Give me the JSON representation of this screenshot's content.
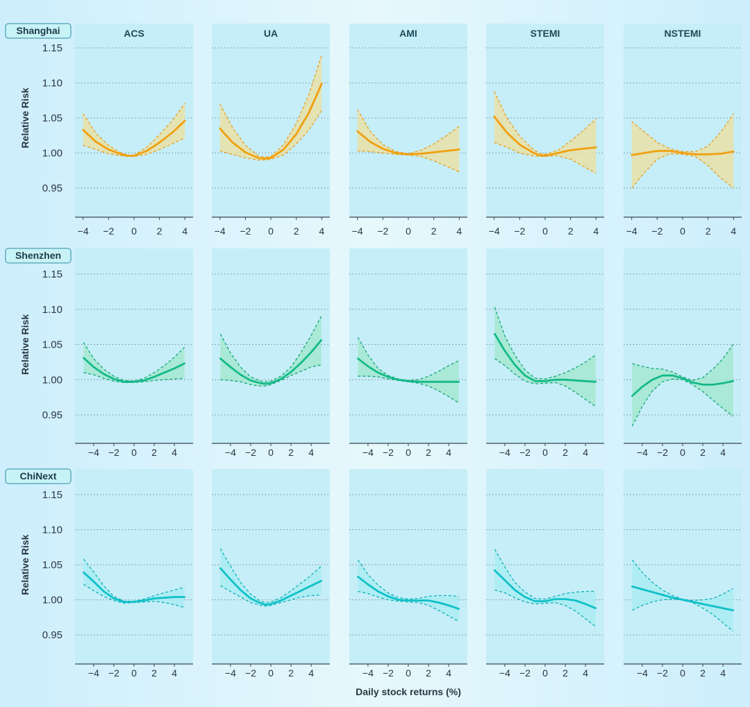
{
  "colors": {
    "Shanghai": {
      "line": "#f0a010",
      "fill": "#e8e0a8",
      "dash": "#eaa020"
    },
    "Shenzhen": {
      "line": "#14b98a",
      "fill": "#a3e7cf",
      "dash": "#14a57c"
    },
    "ChiNext": {
      "line": "#10c0c8",
      "fill": "#a8ecf2",
      "dash": "#10b0b8"
    },
    "panel": "#c6eef8",
    "grid": "#7a8a94"
  },
  "chart_data": {
    "type": "line",
    "xlabel": "Daily stock returns (%)",
    "ylabel": "Relative Risk",
    "columns": [
      "ACS",
      "UA",
      "AMI",
      "STEMI",
      "NSTEMI"
    ],
    "yticks": [
      "0.95",
      "1.00",
      "1.05",
      "1.10",
      "1.15"
    ],
    "ylim": [
      0.91,
      1.155
    ],
    "grid": true,
    "rows": [
      {
        "name": "Shanghai",
        "xlim": [
          -4.2,
          4.2
        ],
        "xticks": [
          "-4",
          "-2",
          "0",
          "2",
          "4"
        ],
        "panels": [
          {
            "x": [
              -4,
              -3,
              -2,
              -1,
              -0.5,
              0,
              1,
              2,
              3,
              4
            ],
            "y": [
              1.033,
              1.016,
              1.005,
              0.998,
              0.996,
              0.996,
              1.003,
              1.015,
              1.029,
              1.046
            ],
            "lo": [
              1.011,
              1.005,
              0.999,
              0.996,
              0.995,
              0.995,
              0.998,
              1.005,
              1.013,
              1.022
            ],
            "hi": [
              1.056,
              1.028,
              1.011,
              1.0,
              0.997,
              0.997,
              1.008,
              1.026,
              1.046,
              1.071
            ]
          },
          {
            "x": [
              -4,
              -3,
              -2,
              -1,
              -0.5,
              0,
              1,
              2,
              3,
              4
            ],
            "y": [
              1.035,
              1.015,
              1.001,
              0.993,
              0.992,
              0.993,
              1.005,
              1.027,
              1.058,
              1.099
            ],
            "lo": [
              1.003,
              0.998,
              0.993,
              0.99,
              0.99,
              0.991,
              0.997,
              1.013,
              1.033,
              1.061
            ],
            "hi": [
              1.07,
              1.036,
              1.011,
              0.996,
              0.994,
              0.995,
              1.012,
              1.042,
              1.084,
              1.14
            ]
          },
          {
            "x": [
              -4,
              -3,
              -2,
              -1,
              0,
              1,
              2,
              3,
              4
            ],
            "y": [
              1.031,
              1.016,
              1.006,
              1.0,
              0.998,
              0.999,
              1.001,
              1.003,
              1.005
            ],
            "lo": [
              1.003,
              1.002,
              1.0,
              0.998,
              0.997,
              0.995,
              0.989,
              0.981,
              0.973
            ],
            "hi": [
              1.062,
              1.031,
              1.012,
              1.002,
              0.999,
              1.004,
              1.013,
              1.025,
              1.038
            ]
          },
          {
            "x": [
              -4,
              -3,
              -2,
              -1,
              -0.5,
              0,
              1,
              2,
              3,
              4
            ],
            "y": [
              1.052,
              1.029,
              1.012,
              1.001,
              0.997,
              0.996,
              1.0,
              1.004,
              1.006,
              1.008
            ],
            "lo": [
              1.015,
              1.008,
              1.0,
              0.996,
              0.995,
              0.995,
              0.996,
              0.991,
              0.981,
              0.971
            ],
            "hi": [
              1.088,
              1.05,
              1.024,
              1.006,
              1.0,
              0.998,
              1.004,
              1.017,
              1.032,
              1.049
            ]
          },
          {
            "x": [
              -4,
              -3,
              -2,
              -1,
              0,
              1,
              2,
              3,
              4
            ],
            "y": [
              0.997,
              1.0,
              1.003,
              1.003,
              1.0,
              0.998,
              0.998,
              0.999,
              1.002
            ],
            "lo": [
              0.95,
              0.972,
              0.991,
              0.999,
              0.998,
              0.995,
              0.982,
              0.964,
              0.95
            ],
            "hi": [
              1.045,
              1.03,
              1.015,
              1.006,
              1.002,
              1.002,
              1.01,
              1.03,
              1.056
            ]
          }
        ]
      },
      {
        "name": "Shenzhen",
        "xlim": [
          -5.3,
          5.3
        ],
        "xticks": [
          "-4",
          "-2",
          "0",
          "2",
          "4"
        ],
        "panels": [
          {
            "x": [
              -5,
              -4,
              -3,
              -2,
              -1,
              0,
              1,
              2,
              3,
              4,
              5
            ],
            "y": [
              1.031,
              1.018,
              1.008,
              1.001,
              0.997,
              0.997,
              0.999,
              1.004,
              1.01,
              1.016,
              1.023
            ],
            "lo": [
              1.01,
              1.007,
              1.002,
              0.998,
              0.996,
              0.996,
              0.997,
              0.999,
              1.0,
              1.001,
              1.002
            ],
            "hi": [
              1.053,
              1.03,
              1.015,
              1.005,
              0.999,
              0.998,
              1.002,
              1.01,
              1.02,
              1.032,
              1.046
            ]
          },
          {
            "x": [
              -5,
              -4,
              -3,
              -2,
              -1,
              -0.5,
              0,
              1,
              2,
              3,
              4,
              5
            ],
            "y": [
              1.03,
              1.018,
              1.007,
              0.999,
              0.995,
              0.994,
              0.995,
              1.001,
              1.011,
              1.024,
              1.039,
              1.056
            ],
            "lo": [
              1.0,
              0.999,
              0.997,
              0.993,
              0.991,
              0.991,
              0.993,
              0.999,
              1.006,
              1.012,
              1.018,
              1.021
            ],
            "hi": [
              1.065,
              1.038,
              1.018,
              1.004,
              0.998,
              0.997,
              0.998,
              1.005,
              1.018,
              1.039,
              1.063,
              1.09
            ]
          },
          {
            "x": [
              -5,
              -4,
              -3,
              -2,
              -1,
              0,
              1,
              2,
              3,
              4,
              5
            ],
            "y": [
              1.03,
              1.019,
              1.01,
              1.004,
              1.0,
              0.998,
              0.997,
              0.997,
              0.997,
              0.997,
              0.997
            ],
            "lo": [
              1.005,
              1.005,
              1.004,
              1.001,
              0.999,
              0.997,
              0.995,
              0.991,
              0.984,
              0.976,
              0.967
            ],
            "hi": [
              1.06,
              1.035,
              1.016,
              1.006,
              1.001,
              0.999,
              1.0,
              1.005,
              1.012,
              1.02,
              1.027
            ]
          },
          {
            "x": [
              -5,
              -4,
              -3,
              -2,
              -1,
              0,
              1,
              2,
              3,
              4,
              5
            ],
            "y": [
              1.065,
              1.041,
              1.021,
              1.006,
              0.998,
              0.998,
              1.0,
              1.0,
              0.999,
              0.998,
              0.997
            ],
            "lo": [
              1.03,
              1.02,
              1.008,
              0.998,
              0.994,
              0.995,
              0.996,
              0.991,
              0.982,
              0.972,
              0.962
            ],
            "hi": [
              1.103,
              1.062,
              1.035,
              1.014,
              1.002,
              1.001,
              1.005,
              1.01,
              1.017,
              1.025,
              1.035
            ]
          },
          {
            "x": [
              -5,
              -4,
              -3,
              -2,
              -1,
              0,
              1,
              2,
              3,
              4,
              5
            ],
            "y": [
              0.977,
              0.99,
              1.0,
              1.006,
              1.006,
              1.002,
              0.996,
              0.993,
              0.993,
              0.995,
              0.998
            ],
            "lo": [
              0.934,
              0.962,
              0.984,
              0.997,
              1.001,
              1.0,
              0.993,
              0.983,
              0.971,
              0.959,
              0.948
            ],
            "hi": [
              1.023,
              1.019,
              1.016,
              1.015,
              1.011,
              1.004,
              0.999,
              1.003,
              1.015,
              1.03,
              1.05
            ]
          }
        ]
      },
      {
        "name": "ChiNext",
        "xlim": [
          -5.3,
          5.3
        ],
        "xticks": [
          "-4",
          "-2",
          "0",
          "2",
          "4"
        ],
        "panels": [
          {
            "x": [
              -5,
              -4,
              -3,
              -2,
              -1,
              0,
              1,
              2,
              3,
              4,
              5
            ],
            "y": [
              1.039,
              1.026,
              1.012,
              1.002,
              0.997,
              0.997,
              0.999,
              1.002,
              1.003,
              1.004,
              1.004
            ],
            "lo": [
              1.022,
              1.013,
              1.005,
              0.999,
              0.995,
              0.996,
              0.997,
              0.998,
              0.996,
              0.993,
              0.989
            ],
            "hi": [
              1.058,
              1.04,
              1.02,
              1.005,
              0.998,
              0.998,
              1.001,
              1.006,
              1.01,
              1.014,
              1.018
            ]
          },
          {
            "x": [
              -5,
              -4,
              -3,
              -2,
              -1,
              -0.5,
              0,
              1,
              2,
              3,
              4,
              5
            ],
            "y": [
              1.045,
              1.029,
              1.014,
              1.002,
              0.995,
              0.993,
              0.994,
              0.999,
              1.006,
              1.013,
              1.02,
              1.027
            ],
            "lo": [
              1.02,
              1.012,
              1.004,
              0.996,
              0.992,
              0.991,
              0.992,
              0.996,
              1.0,
              1.004,
              1.006,
              1.007
            ],
            "hi": [
              1.073,
              1.048,
              1.025,
              1.008,
              0.998,
              0.996,
              0.997,
              1.003,
              1.013,
              1.024,
              1.035,
              1.048
            ]
          },
          {
            "x": [
              -5,
              -4,
              -3,
              -2,
              -1,
              0,
              1,
              2,
              3,
              4,
              5
            ],
            "y": [
              1.033,
              1.022,
              1.012,
              1.005,
              1.0,
              0.999,
              0.999,
              0.999,
              0.996,
              0.992,
              0.987
            ],
            "lo": [
              1.012,
              1.009,
              1.004,
              1.0,
              0.998,
              0.997,
              0.996,
              0.992,
              0.985,
              0.977,
              0.969
            ],
            "hi": [
              1.057,
              1.036,
              1.021,
              1.01,
              1.003,
              1.001,
              1.002,
              1.005,
              1.006,
              1.006,
              1.005
            ]
          },
          {
            "x": [
              -5,
              -4,
              -3,
              -2,
              -1,
              0,
              1,
              2,
              3,
              4,
              5
            ],
            "y": [
              1.042,
              1.028,
              1.014,
              1.004,
              0.998,
              0.998,
              1.001,
              1.001,
              0.999,
              0.994,
              0.988
            ],
            "lo": [
              1.014,
              1.01,
              1.003,
              0.997,
              0.994,
              0.995,
              0.996,
              0.992,
              0.984,
              0.973,
              0.962
            ],
            "hi": [
              1.072,
              1.047,
              1.025,
              1.011,
              1.002,
              1.001,
              1.005,
              1.009,
              1.011,
              1.012,
              1.012
            ]
          },
          {
            "x": [
              -5,
              -4,
              -3,
              -2,
              -1,
              0,
              1,
              2,
              3,
              4,
              5
            ],
            "y": [
              1.019,
              1.015,
              1.011,
              1.007,
              1.003,
              1.0,
              0.997,
              0.994,
              0.991,
              0.988,
              0.985
            ],
            "lo": [
              0.985,
              0.992,
              0.997,
              1.0,
              1.001,
              1.0,
              0.996,
              0.988,
              0.979,
              0.967,
              0.955
            ],
            "hi": [
              1.057,
              1.039,
              1.025,
              1.014,
              1.006,
              1.001,
              0.999,
              1.0,
              1.002,
              1.008,
              1.016
            ]
          }
        ]
      }
    ]
  }
}
